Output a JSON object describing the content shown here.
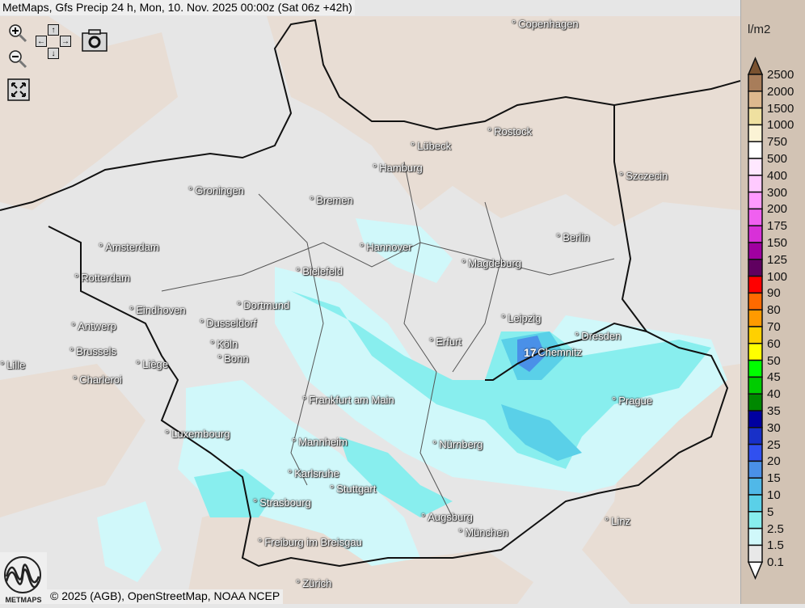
{
  "title": "MetMaps, Gfs Precip 24 h, Mon, 10. Nov. 2025 00:00z (Sat 06z +42h)",
  "controls": {
    "zoom_in": "zoom-in",
    "zoom_out": "zoom-out",
    "pan": [
      "↑",
      "←",
      "→",
      "↓"
    ],
    "snapshot": "camera",
    "fullscreen": "expand"
  },
  "cities": [
    {
      "name": "Copenhagen"
    },
    {
      "name": "Rostock"
    },
    {
      "name": "Lübeck"
    },
    {
      "name": "Hamburg"
    },
    {
      "name": "Szczecin"
    },
    {
      "name": "Groningen"
    },
    {
      "name": "Bremen"
    },
    {
      "name": "Berlin"
    },
    {
      "name": "Amsterdam"
    },
    {
      "name": "Hannover"
    },
    {
      "name": "Rotterdam"
    },
    {
      "name": "Bielefeld"
    },
    {
      "name": "Magdeburg"
    },
    {
      "name": "Eindhoven"
    },
    {
      "name": "Dortmund"
    },
    {
      "name": "Leipzig"
    },
    {
      "name": "Antwerp"
    },
    {
      "name": "Dusseldorf"
    },
    {
      "name": "Dresden"
    },
    {
      "name": "Köln"
    },
    {
      "name": "Erfurt"
    },
    {
      "name": "Brussels"
    },
    {
      "name": "Chemnitz"
    },
    {
      "name": "Lille"
    },
    {
      "name": "Liège"
    },
    {
      "name": "Bonn"
    },
    {
      "name": "Charleroi"
    },
    {
      "name": "Frankfurt am Main"
    },
    {
      "name": "Prague"
    },
    {
      "name": "Luxembourg"
    },
    {
      "name": "Mannheim"
    },
    {
      "name": "Nürnberg"
    },
    {
      "name": "Karlsruhe"
    },
    {
      "name": "Stuttgart"
    },
    {
      "name": "Strasbourg"
    },
    {
      "name": "Augsburg"
    },
    {
      "name": "Linz"
    },
    {
      "name": "München"
    },
    {
      "name": "Freiburg im Breisgau"
    },
    {
      "name": "Zürich"
    }
  ],
  "max_value_label": "17",
  "legend": {
    "unit": "l/m2",
    "labels": [
      "2500",
      "2000",
      "1500",
      "1000",
      "750",
      "500",
      "400",
      "300",
      "200",
      "175",
      "150",
      "125",
      "100",
      "90",
      "80",
      "70",
      "60",
      "50",
      "45",
      "40",
      "35",
      "30",
      "25",
      "20",
      "15",
      "10",
      "5",
      "2.5",
      "1.5",
      "0.1"
    ],
    "top_color": "#7a5230",
    "colors": [
      "#a87d5a",
      "#ddb88e",
      "#efe0a0",
      "#fbf3d5",
      "#ffffff",
      "#ffe8ff",
      "#ffcaff",
      "#ff99ff",
      "#f060f0",
      "#d830d8",
      "#a000a0",
      "#600060",
      "#ff0000",
      "#ff6a00",
      "#ff9a00",
      "#ffd000",
      "#ffff00",
      "#00ff00",
      "#00cc00",
      "#008800",
      "#0000a0",
      "#1830c8",
      "#3050f0",
      "#4a90e8",
      "#50b8e8",
      "#5ad0e8",
      "#88eeee",
      "#d0f8fa",
      "#e8e8e8"
    ],
    "bottom_color": "#ffffff"
  },
  "credit": "© 2025 (AGB), OpenStreetMap, NOAA NCEP",
  "logo_text": "METMAPS"
}
